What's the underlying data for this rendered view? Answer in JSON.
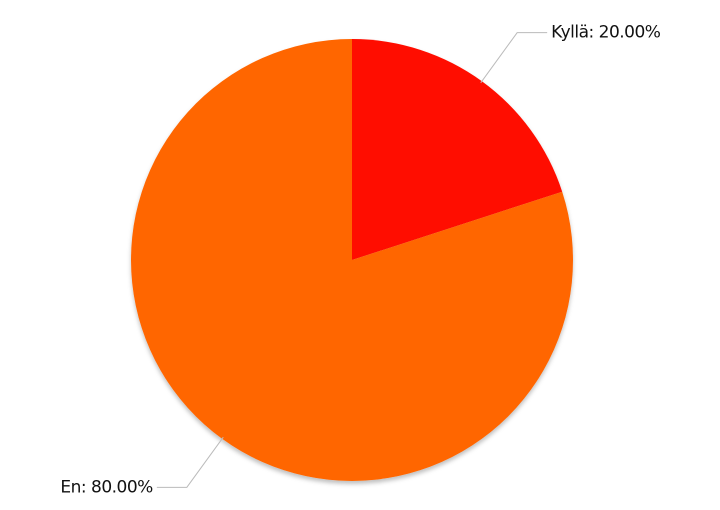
{
  "chart_data": {
    "type": "pie",
    "values": [
      20,
      80
    ],
    "value_labels": [
      "Kyllä: 20.00%",
      "En: 80.00%"
    ],
    "colors": [
      "#ff1100",
      "#ff6600"
    ]
  }
}
